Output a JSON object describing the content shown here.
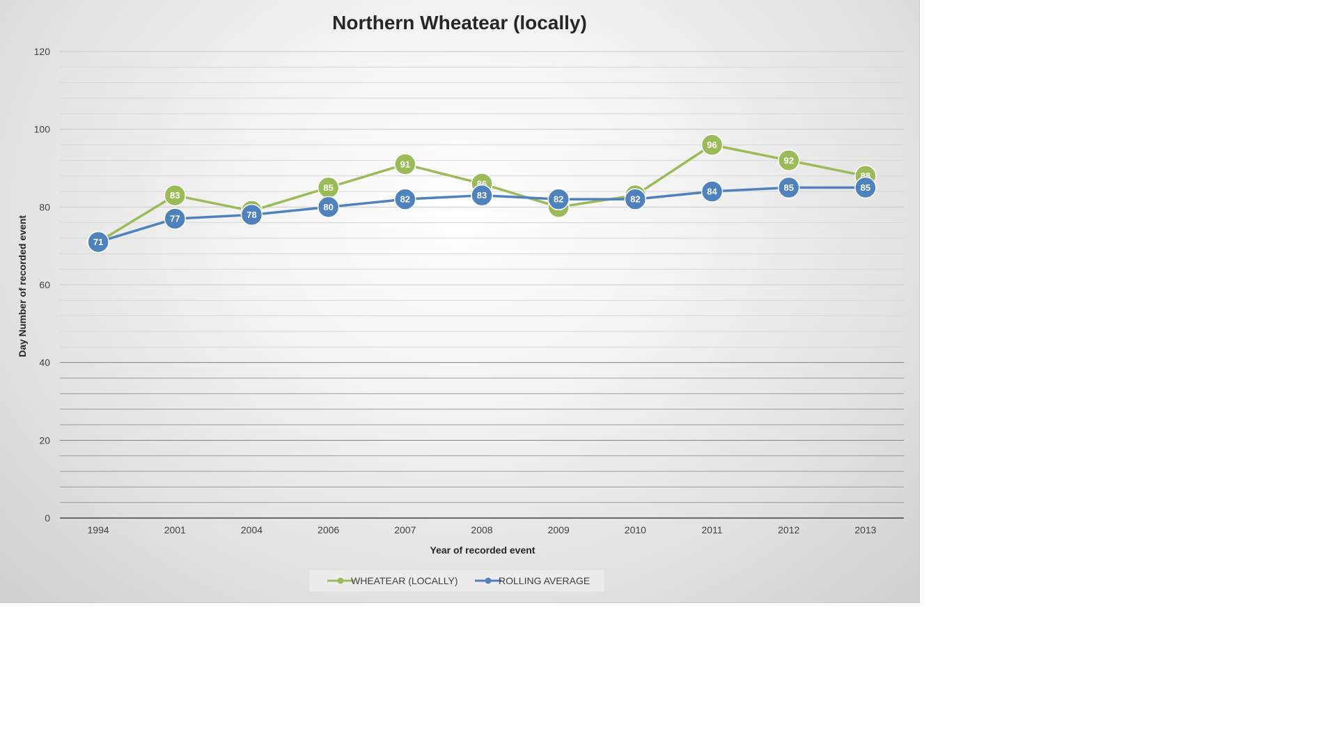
{
  "chart_data": {
    "type": "line",
    "title": "Northern Wheatear (locally)",
    "xlabel": "Year of recorded  event",
    "ylabel": "Day Number of recorded  event",
    "ylim": [
      0,
      120
    ],
    "y_ticks": [
      "0",
      "20",
      "40",
      "60",
      "80",
      "100",
      "120"
    ],
    "grid": true,
    "legend_position": "bottom",
    "categories": [
      "1994",
      "2001",
      "2004",
      "2006",
      "2007",
      "2008",
      "2009",
      "2010",
      "2011",
      "2012",
      "2013"
    ],
    "series": [
      {
        "name": "WHEATEAR (LOCALLY)",
        "color": "#9bbb59",
        "values": [
          71,
          83,
          79,
          85,
          91,
          86,
          80,
          83,
          96,
          92,
          88
        ],
        "labels": [
          "71",
          "83",
          "79",
          "85",
          "91",
          "86",
          "80",
          "83",
          "96",
          "92",
          "88"
        ]
      },
      {
        "name": "ROLLING AVERAGE",
        "color": "#4f81bd",
        "values": [
          71,
          77,
          78,
          80,
          82,
          83,
          82,
          82,
          84,
          85,
          85
        ],
        "labels": [
          "71",
          "77",
          "78",
          "80",
          "82",
          "83",
          "82",
          "82",
          "84",
          "85",
          "85"
        ]
      }
    ]
  }
}
